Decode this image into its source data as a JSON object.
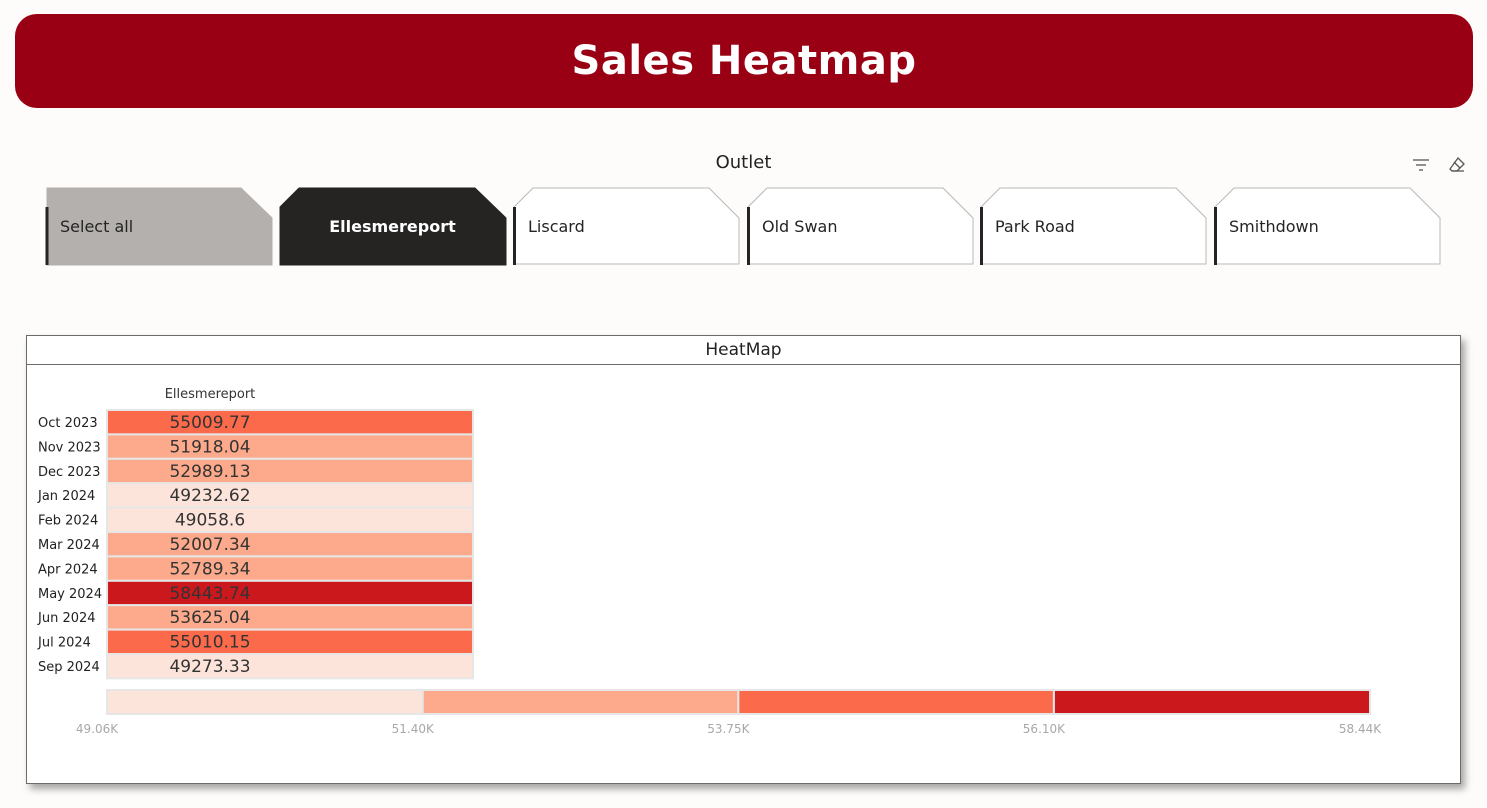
{
  "header": {
    "title": "Sales Heatmap"
  },
  "slicer": {
    "title": "Outlet",
    "tiles": [
      {
        "label": "Select all",
        "state": "hover"
      },
      {
        "label": "Ellesmereport",
        "state": "selected"
      },
      {
        "label": "Liscard",
        "state": "normal"
      },
      {
        "label": "Old Swan",
        "state": "normal"
      },
      {
        "label": "Park Road",
        "state": "normal"
      },
      {
        "label": "Smithdown",
        "state": "normal"
      }
    ],
    "tools": {
      "filter": "filter-icon",
      "clear": "eraser-icon"
    }
  },
  "panel": {
    "title": "HeatMap"
  },
  "colors": {
    "banner": "#9a0013",
    "tile_selected": "#252423",
    "tile_hover": "#b3b0ad",
    "scale": [
      "#fde4da",
      "#fcaa8b",
      "#fb6a4b",
      "#cb181d"
    ]
  },
  "chart_data": {
    "type": "heatmap",
    "columns": [
      "Ellesmereport"
    ],
    "rows": [
      "Oct 2023",
      "Nov 2023",
      "Dec 2023",
      "Jan 2024",
      "Feb 2024",
      "Mar 2024",
      "Apr 2024",
      "May 2024",
      "Jun 2024",
      "Jul 2024",
      "Sep 2024"
    ],
    "values": [
      55009.77,
      51918.04,
      52989.13,
      49232.62,
      49058.6,
      52007.34,
      52789.34,
      58443.74,
      53625.04,
      55010.15,
      49273.33
    ],
    "value_labels": [
      "55009.77",
      "51918.04",
      "52989.13",
      "49232.62",
      "49058.6",
      "52007.34",
      "52789.34",
      "58443.74",
      "53625.04",
      "55010.15",
      "49273.33"
    ],
    "legend": {
      "thresholds": [
        49058.6,
        51405,
        53750,
        56095,
        58443.74
      ],
      "tick_labels": [
        "49.06K",
        "51.40K",
        "53.75K",
        "56.10K",
        "58.44K"
      ],
      "placement": "bottom"
    }
  }
}
